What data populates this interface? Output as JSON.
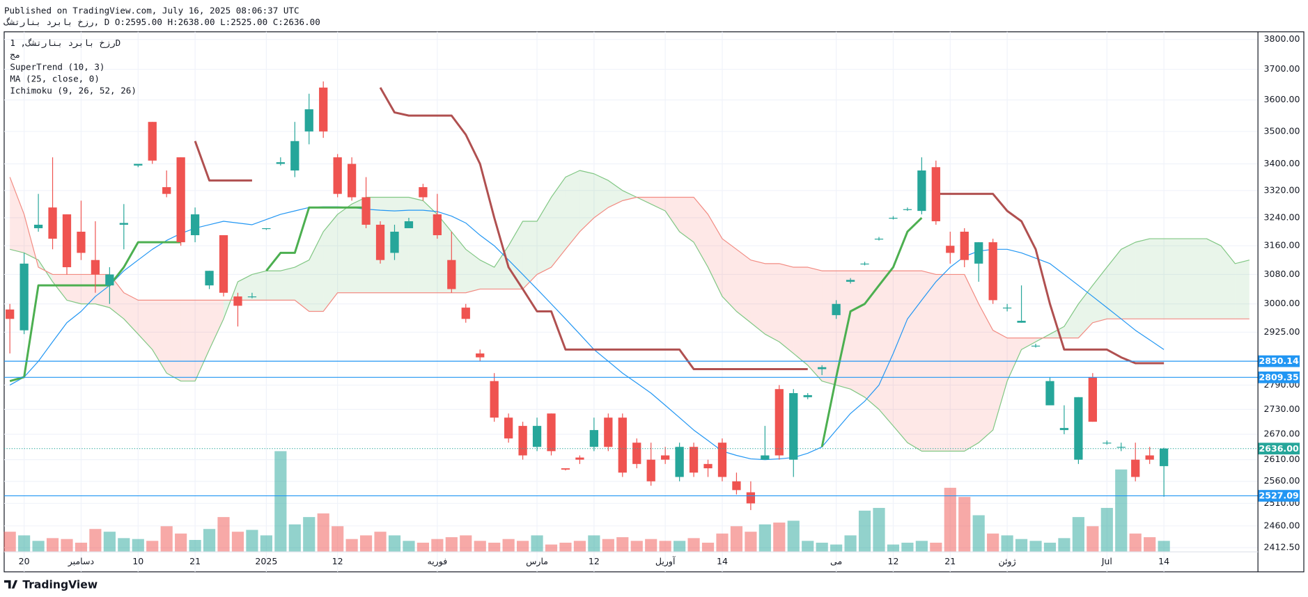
{
  "header": {
    "published": "Published on TradingView.com, July 16, 2025 08:06:37 UTC",
    "symbol_line": "رزخ بابرد بنارتشگ, D O:2595.00 H:2638.00 L:2525.00 C:2636.00"
  },
  "footer": {
    "brand": "TradingView"
  },
  "chart_data": {
    "type": "candlestick",
    "symbol": "رزخ بابرد بنارتشگ, 1D",
    "subtitle": "مج",
    "log_scale": true,
    "grid": true,
    "up_color": "#26a69a",
    "down_color": "#ef5350",
    "ylim": [
      2361,
      3826
    ],
    "yticks": [
      {
        "value": 3800,
        "label": "3800.00"
      },
      {
        "value": 3700,
        "label": "3700.00"
      },
      {
        "value": 3600,
        "label": "3600.00"
      },
      {
        "value": 3500,
        "label": "3500.00"
      },
      {
        "value": 3400,
        "label": "3400.00"
      },
      {
        "value": 3320,
        "label": "3320.00"
      },
      {
        "value": 3240,
        "label": "3240.00"
      },
      {
        "value": 3160,
        "label": "3160.00"
      },
      {
        "value": 3080,
        "label": "3080.00"
      },
      {
        "value": 3000,
        "label": "3000.00"
      },
      {
        "value": 2925,
        "label": "2925.00"
      },
      {
        "value": 2790,
        "label": "2790.00"
      },
      {
        "value": 2730,
        "label": "2730.00"
      },
      {
        "value": 2670,
        "label": "2670.00"
      },
      {
        "value": 2610,
        "label": "2610.00"
      },
      {
        "value": 2560,
        "label": "2560.00"
      },
      {
        "value": 2510,
        "label": "2510.00"
      },
      {
        "value": 2460,
        "label": "2460.00"
      },
      {
        "value": 2412.5,
        "label": "2412.50"
      }
    ],
    "xlim": [
      -0.4,
      87.6
    ],
    "xticks": [
      {
        "value": 1,
        "label": "20"
      },
      {
        "value": 5,
        "label": "دسامبر"
      },
      {
        "value": 9,
        "label": "10"
      },
      {
        "value": 13,
        "label": "21"
      },
      {
        "value": 18,
        "label": "2025"
      },
      {
        "value": 23,
        "label": "12"
      },
      {
        "value": 30,
        "label": "فوریه"
      },
      {
        "value": 37,
        "label": "مارس"
      },
      {
        "value": 41,
        "label": "12"
      },
      {
        "value": 46,
        "label": "آوریل"
      },
      {
        "value": 50,
        "label": "14"
      },
      {
        "value": 58,
        "label": "می"
      },
      {
        "value": 62,
        "label": "12"
      },
      {
        "value": 66,
        "label": "21"
      },
      {
        "value": 70,
        "label": "ژوئن"
      },
      {
        "value": 77,
        "label": "Jul"
      },
      {
        "value": 81,
        "label": "14"
      }
    ],
    "open": [
      2985,
      2930,
      3210,
      3270,
      3250,
      3200,
      3120,
      3050,
      3220,
      3395,
      3530,
      3330,
      3420,
      3190,
      3050,
      3190,
      3020,
      3020,
      3210,
      3400,
      3380,
      3500,
      3640,
      3420,
      3400,
      3300,
      3220,
      3140,
      3210,
      3330,
      3250,
      3120,
      2990,
      2870,
      2800,
      2710,
      2690,
      2640,
      2720,
      2590,
      2615,
      2640,
      2710,
      2710,
      2650,
      2610,
      2620,
      2570,
      2640,
      2600,
      2650,
      2560,
      2535,
      2610,
      2780,
      2610,
      2760,
      2830,
      2970,
      3060,
      3110,
      3180,
      3240,
      3265,
      3260,
      3390,
      3160,
      3200,
      3110,
      3170,
      2990,
      2950,
      2890,
      2740,
      2680,
      2610,
      2810,
      2650,
      2640,
      2610,
      2620,
      2595
    ],
    "high": [
      3000,
      3140,
      3310,
      3420,
      3250,
      3290,
      3230,
      3100,
      3280,
      3400,
      3530,
      3380,
      3420,
      3270,
      3090,
      3190,
      3030,
      3030,
      3210,
      3420,
      3530,
      3620,
      3660,
      3430,
      3420,
      3360,
      3230,
      3220,
      3240,
      3340,
      3310,
      3200,
      3000,
      2880,
      2820,
      2720,
      2700,
      2710,
      2720,
      2590,
      2620,
      2710,
      2720,
      2720,
      2660,
      2650,
      2640,
      2650,
      2650,
      2610,
      2660,
      2580,
      2560,
      2690,
      2790,
      2780,
      2770,
      2840,
      3010,
      3070,
      3115,
      3185,
      3245,
      3270,
      3420,
      3410,
      3200,
      3210,
      3170,
      3180,
      3000,
      3050,
      2895,
      2810,
      2740,
      2760,
      2820,
      2655,
      2650,
      2650,
      2640,
      2638
    ],
    "low": [
      2870,
      2920,
      3200,
      3150,
      3080,
      3120,
      3030,
      3000,
      3150,
      3390,
      3400,
      3300,
      3160,
      3170,
      3040,
      3020,
      2940,
      3015,
      3205,
      3395,
      3360,
      3460,
      3480,
      3300,
      3290,
      3210,
      3110,
      3120,
      3210,
      3290,
      3180,
      3030,
      2950,
      2850,
      2700,
      2650,
      2610,
      2630,
      2620,
      2585,
      2600,
      2630,
      2630,
      2570,
      2590,
      2550,
      2600,
      2560,
      2570,
      2570,
      2560,
      2530,
      2495,
      2610,
      2610,
      2570,
      2755,
      2815,
      2960,
      3055,
      3105,
      3175,
      3235,
      3260,
      3250,
      3220,
      3110,
      3100,
      3060,
      3000,
      2980,
      2950,
      2885,
      2740,
      2670,
      2600,
      2700,
      2645,
      2630,
      2560,
      2600,
      2525
    ],
    "close": [
      2960,
      3110,
      3220,
      3180,
      3100,
      3140,
      3080,
      3080,
      3225,
      3400,
      3410,
      3310,
      3170,
      3250,
      3090,
      3030,
      2995,
      3020,
      3210,
      3405,
      3470,
      3570,
      3500,
      3310,
      3300,
      3220,
      3120,
      3200,
      3230,
      3300,
      3190,
      3040,
      2960,
      2860,
      2710,
      2660,
      2620,
      2690,
      2630,
      2587,
      2610,
      2680,
      2640,
      2580,
      2600,
      2560,
      2610,
      2640,
      2580,
      2590,
      2570,
      2540,
      2510,
      2620,
      2620,
      2770,
      2765,
      2835,
      3000,
      3065,
      3110,
      3180,
      3240,
      3265,
      3380,
      3230,
      3140,
      3120,
      3170,
      3010,
      2990,
      2955,
      2890,
      2800,
      2685,
      2760,
      2700,
      2650,
      2640,
      2570,
      2610,
      2636
    ],
    "volume": {
      "ylim": [
        0,
        112
      ],
      "values": [
        22,
        18,
        12,
        15,
        14,
        10,
        25,
        22,
        15,
        14,
        12,
        28,
        20,
        13,
        25,
        38,
        22,
        24,
        18,
        110,
        30,
        38,
        42,
        28,
        14,
        18,
        22,
        18,
        12,
        10,
        14,
        16,
        18,
        12,
        10,
        14,
        12,
        18,
        8,
        10,
        12,
        18,
        14,
        16,
        12,
        14,
        12,
        12,
        15,
        10,
        20,
        28,
        22,
        30,
        32,
        34,
        12,
        10,
        8,
        18,
        45,
        48,
        8,
        10,
        12,
        10,
        70,
        60,
        40,
        20,
        18,
        14,
        12,
        10,
        15,
        38,
        28,
        48,
        90,
        20,
        16,
        12
      ]
    },
    "supertrend": {
      "name": "SuperTrend (10, 3)",
      "up_color": "#4caf50",
      "down_color": "#b05050",
      "up": [
        2800,
        2810,
        3050,
        3050,
        3050,
        3050,
        3050,
        3050,
        3100,
        3170,
        3170,
        3170,
        3170,
        null,
        null,
        null,
        null,
        null,
        3090,
        3140,
        3140,
        3270,
        3270,
        3270,
        3270,
        3270,
        null,
        null,
        null,
        null,
        null,
        null,
        null,
        null,
        null,
        null,
        null,
        null,
        null,
        null,
        null,
        null,
        null,
        null,
        null,
        null,
        null,
        null,
        null,
        null,
        null,
        null,
        null,
        null,
        null,
        null,
        null,
        2640,
        2810,
        2980,
        3000,
        3050,
        3100,
        3200,
        3240,
        null,
        null,
        null,
        null,
        null,
        null,
        null,
        null,
        null,
        null,
        null,
        null,
        null,
        null,
        null,
        null,
        null
      ],
      "down": [
        null,
        null,
        null,
        null,
        null,
        null,
        null,
        null,
        null,
        null,
        null,
        null,
        null,
        3470,
        3350,
        3350,
        3350,
        3350,
        null,
        null,
        null,
        null,
        null,
        null,
        null,
        null,
        3640,
        3560,
        3550,
        3550,
        3550,
        3550,
        3490,
        3400,
        3240,
        3100,
        3040,
        2980,
        2980,
        2880,
        2880,
        2880,
        2880,
        2880,
        2880,
        2880,
        2880,
        2880,
        2830,
        2830,
        2830,
        2830,
        2830,
        2830,
        2830,
        2830,
        2830,
        null,
        null,
        null,
        null,
        null,
        null,
        null,
        null,
        3310,
        3310,
        3310,
        3310,
        3310,
        3260,
        3230,
        3150,
        3000,
        2880,
        2880,
        2880,
        2880,
        2860,
        2845,
        2845,
        2845
      ]
    },
    "ma": {
      "name": "MA (25, close, 0)",
      "color": "#2196f3",
      "values": [
        2790,
        2810,
        2850,
        2900,
        2950,
        2980,
        3020,
        3050,
        3090,
        3120,
        3150,
        3175,
        3195,
        3210,
        3220,
        3230,
        3225,
        3220,
        3235,
        3250,
        3260,
        3270,
        3272,
        3272,
        3270,
        3265,
        3262,
        3260,
        3262,
        3262,
        3258,
        3245,
        3225,
        3190,
        3160,
        3120,
        3080,
        3040,
        3000,
        2960,
        2920,
        2880,
        2850,
        2820,
        2795,
        2770,
        2740,
        2710,
        2680,
        2655,
        2630,
        2620,
        2612,
        2610,
        2612,
        2615,
        2625,
        2640,
        2680,
        2720,
        2750,
        2790,
        2870,
        2960,
        3010,
        3060,
        3100,
        3130,
        3145,
        3150,
        3150,
        3140,
        3125,
        3110,
        3080,
        3050,
        3020,
        2990,
        2960,
        2930,
        2905,
        2880
      ]
    },
    "ichimoku": {
      "name": "Ichimoku (9, 26, 52, 26)",
      "a_color": "#81c784",
      "b_color": "#f28b82",
      "up_fill": "#4caf50",
      "down_fill": "#f44336",
      "span_a": [
        3150,
        3140,
        3120,
        3060,
        3010,
        3000,
        3000,
        2990,
        2960,
        2920,
        2880,
        2820,
        2800,
        2800,
        2880,
        2960,
        3060,
        3080,
        3090,
        3090,
        3100,
        3120,
        3200,
        3250,
        3280,
        3300,
        3300,
        3300,
        3300,
        3290,
        3250,
        3200,
        3150,
        3120,
        3100,
        3160,
        3230,
        3230,
        3300,
        3360,
        3380,
        3370,
        3350,
        3320,
        3300,
        3280,
        3260,
        3200,
        3170,
        3100,
        3020,
        2980,
        2950,
        2920,
        2900,
        2870,
        2840,
        2800,
        2790,
        2780,
        2760,
        2730,
        2690,
        2650,
        2630,
        2630,
        2630,
        2630,
        2650,
        2680,
        2800,
        2880,
        2900,
        2920,
        2940,
        3000,
        3050,
        3100,
        3150,
        3170,
        3180,
        3180,
        3180,
        3180,
        3180,
        3160,
        3110,
        3120
      ],
      "span_b": [
        3360,
        3250,
        3100,
        3080,
        3080,
        3080,
        3080,
        3080,
        3030,
        3010,
        3010,
        3010,
        3010,
        3010,
        3010,
        3010,
        3010,
        3010,
        3010,
        3010,
        3010,
        2980,
        2980,
        3030,
        3030,
        3030,
        3030,
        3030,
        3030,
        3030,
        3030,
        3030,
        3030,
        3040,
        3040,
        3040,
        3040,
        3080,
        3100,
        3150,
        3200,
        3240,
        3270,
        3290,
        3300,
        3300,
        3300,
        3300,
        3300,
        3250,
        3180,
        3150,
        3120,
        3110,
        3110,
        3100,
        3100,
        3090,
        3090,
        3090,
        3090,
        3090,
        3090,
        3090,
        3090,
        3080,
        3080,
        3080,
        3000,
        2930,
        2910,
        2910,
        2910,
        2910,
        2910,
        2910,
        2950,
        2960,
        2960,
        2960,
        2960,
        2960,
        2960,
        2960,
        2960,
        2960,
        2960,
        2960
      ]
    },
    "price_lines": [
      {
        "value": 2850.14,
        "label": "2850.14",
        "color": "#2196f3"
      },
      {
        "value": 2809.35,
        "label": "2809.35",
        "color": "#2196f3"
      },
      {
        "value": 2527.09,
        "label": "2527.09",
        "color": "#2196f3"
      }
    ],
    "last_price": {
      "value": 2636,
      "label": "2636.00",
      "color": "#26a69a"
    }
  }
}
